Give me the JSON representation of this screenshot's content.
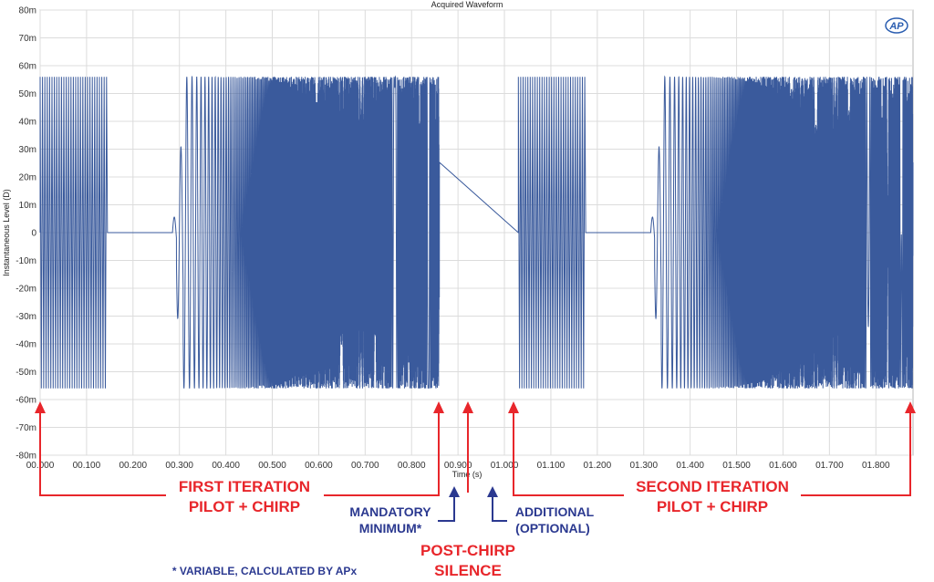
{
  "chart_data": {
    "type": "line",
    "title": "Acquired Waveform",
    "xlabel": "Time (s)",
    "ylabel": "Instantaneous Level (D)",
    "xlim": [
      0,
      1.88
    ],
    "ylim": [
      -0.08,
      0.08
    ],
    "grid": true,
    "x_ticks": [
      "00.000",
      "00.100",
      "00.200",
      "00.300",
      "00.400",
      "00.500",
      "00.600",
      "00.700",
      "00.800",
      "00.900",
      "01.000",
      "01.100",
      "01.200",
      "01.300",
      "01.400",
      "01.500",
      "01.600",
      "01.700",
      "01.800"
    ],
    "y_ticks": [
      "80m",
      "70m",
      "60m",
      "50m",
      "40m",
      "30m",
      "20m",
      "10m",
      "0",
      "-10m",
      "-20m",
      "-30m",
      "-40m",
      "-50m",
      "-60m",
      "-70m",
      "-80m"
    ],
    "series": [
      {
        "color": "#3a5a9c",
        "segments": [
          {
            "kind": "pilot",
            "start": 0.0,
            "end": 0.145,
            "amplitude": 0.056
          },
          {
            "kind": "silence",
            "start": 0.145,
            "end": 0.285,
            "amplitude": 0
          },
          {
            "kind": "chirp",
            "start": 0.285,
            "end": 0.86,
            "amplitude": 0.056
          },
          {
            "kind": "silence",
            "start": 0.86,
            "end": 1.03,
            "amplitude": 0
          },
          {
            "kind": "pilot",
            "start": 1.03,
            "end": 1.175,
            "amplitude": 0.056
          },
          {
            "kind": "silence",
            "start": 1.175,
            "end": 1.315,
            "amplitude": 0
          },
          {
            "kind": "chirp",
            "start": 1.315,
            "end": 1.88,
            "amplitude": 0.056
          }
        ]
      }
    ],
    "annotations": {
      "first_line1": "FIRST ITERATION",
      "first_line2": "PILOT + CHIRP",
      "second_line1": "SECOND ITERATION",
      "second_line2": "PILOT + CHIRP",
      "mandatory_line1": "MANDATORY",
      "mandatory_line2": "MINIMUM*",
      "additional_line1": "ADDITIONAL",
      "additional_line2": "(OPTIONAL)",
      "post_line1": "POST-CHIRP",
      "post_line2": "SILENCE",
      "footnote": "* VARIABLE, CALCULATED BY APx",
      "logo": "AP"
    }
  },
  "colors": {
    "signal": "#3a5a9c",
    "annotation_red": "#e8262b",
    "annotation_blue": "#2b3990",
    "grid": "#dcdcdc"
  }
}
